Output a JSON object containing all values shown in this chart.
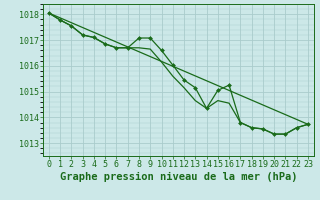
{
  "title": "Graphe pression niveau de la mer (hPa)",
  "bg_color": "#cce8e8",
  "grid_color": "#aacccc",
  "line_color": "#1a6b1a",
  "marker_color": "#1a6b1a",
  "xlim": [
    -0.5,
    23.5
  ],
  "ylim": [
    1012.5,
    1018.4
  ],
  "yticks": [
    1013,
    1014,
    1015,
    1016,
    1017,
    1018
  ],
  "xticks": [
    0,
    1,
    2,
    3,
    4,
    5,
    6,
    7,
    8,
    9,
    10,
    11,
    12,
    13,
    14,
    15,
    16,
    17,
    18,
    19,
    20,
    21,
    22,
    23
  ],
  "series1_x": [
    0,
    1,
    2,
    3,
    4,
    5,
    6,
    7,
    8,
    9,
    10,
    11,
    12,
    13,
    14,
    15,
    16,
    17,
    18,
    19,
    20,
    21,
    22,
    23
  ],
  "series1_y": [
    1018.05,
    1017.78,
    1017.55,
    1017.2,
    1017.1,
    1016.85,
    1016.7,
    1016.7,
    1017.08,
    1017.08,
    1016.6,
    1016.03,
    1015.45,
    1015.15,
    1014.35,
    1015.05,
    1015.25,
    1013.8,
    1013.6,
    1013.55,
    1013.35,
    1013.35,
    1013.6,
    1013.73
  ],
  "series2_x": [
    0,
    1,
    2,
    3,
    4,
    5,
    6,
    7,
    8,
    9,
    10,
    11,
    12,
    13,
    14,
    15,
    16,
    17,
    18,
    19,
    20,
    21,
    22,
    23
  ],
  "series2_y": [
    1018.05,
    1017.78,
    1017.55,
    1017.2,
    1017.1,
    1016.85,
    1016.7,
    1016.7,
    1016.7,
    1016.65,
    1016.15,
    1015.6,
    1015.15,
    1014.65,
    1014.35,
    1014.65,
    1014.55,
    1013.8,
    1013.6,
    1013.55,
    1013.35,
    1013.35,
    1013.6,
    1013.73
  ],
  "series3_x": [
    0,
    23
  ],
  "series3_y": [
    1018.05,
    1013.73
  ],
  "tick_fontsize": 6,
  "label_fontsize": 7.5
}
